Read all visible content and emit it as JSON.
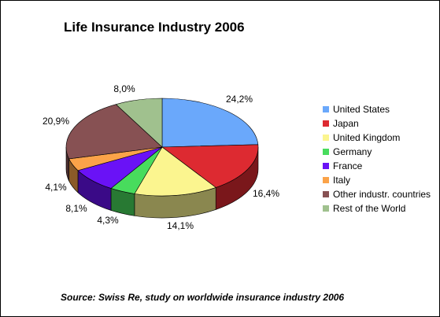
{
  "chart_data": {
    "type": "pie",
    "title": "Life Insurance Industry 2006",
    "categories": [
      "United States",
      "Japan",
      "United Kingdom",
      "Germany",
      "France",
      "Italy",
      "Other industr. countries",
      "Rest of the World"
    ],
    "values": [
      24.2,
      16.4,
      14.1,
      4.3,
      8.1,
      4.1,
      20.9,
      8.0
    ],
    "value_labels": [
      "24,2%",
      "16,4%",
      "14,1%",
      "4,3%",
      "8,1%",
      "4,1%",
      "20,9%",
      "8,0%"
    ],
    "colors": [
      "#6aa8fb",
      "#dd2a31",
      "#fbf58f",
      "#48dc5d",
      "#6a12f6",
      "#fba349",
      "#875153",
      "#a0c18e"
    ],
    "legend_position": "right",
    "three_d": true
  },
  "source_note": "Source: Swiss Re, study on worldwide insurance industry 2006"
}
